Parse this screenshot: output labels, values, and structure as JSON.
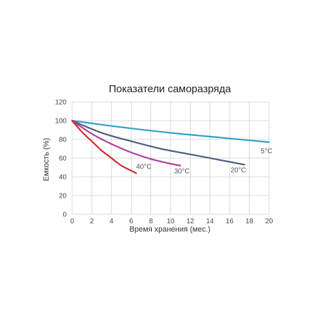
{
  "chart_data": {
    "type": "line",
    "title": "Показатели саморазряда",
    "xlabel": "Время хранения (мес.)",
    "ylabel": "Емкость (%)",
    "xlim": [
      0,
      20
    ],
    "ylim": [
      0,
      120
    ],
    "x_ticks": [
      "0",
      "2",
      "4",
      "6",
      "8",
      "10",
      "12",
      "14",
      "16",
      "18",
      "20"
    ],
    "y_ticks": [
      "0",
      "20",
      "40",
      "60",
      "80",
      "100",
      "120"
    ],
    "grid": true,
    "series": [
      {
        "name": "5°C",
        "label": "5°C",
        "color": "#2fa0c2",
        "x": [
          0,
          5,
          10,
          15,
          20
        ],
        "y": [
          100,
          93,
          87,
          82,
          77
        ]
      },
      {
        "name": "20°C",
        "label": "20°C",
        "color": "#4c5c82",
        "x": [
          0,
          3,
          6,
          9,
          12,
          15,
          17.5
        ],
        "y": [
          100,
          87,
          78,
          70,
          64,
          58,
          53
        ]
      },
      {
        "name": "30°C",
        "label": "30°C",
        "color": "#ad3f9c",
        "x": [
          0,
          2,
          4,
          6,
          8,
          10,
          11
        ],
        "y": [
          100,
          86,
          75,
          66,
          59,
          54,
          52
        ]
      },
      {
        "name": "40°C",
        "label": "40°C",
        "color": "#cc2a2a",
        "x": [
          0,
          1,
          2,
          3,
          4,
          5,
          6.5
        ],
        "y": [
          100,
          88,
          78,
          68,
          60,
          52,
          44
        ]
      }
    ]
  }
}
